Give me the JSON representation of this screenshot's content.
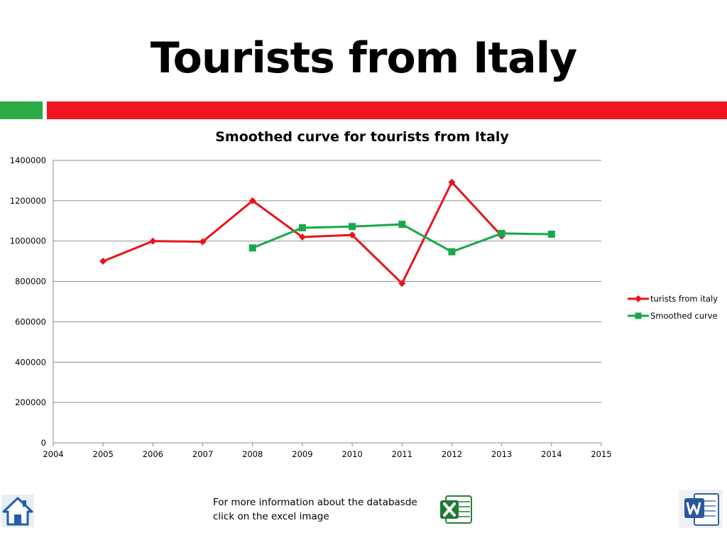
{
  "slide": {
    "title": "Tourists from Italy",
    "accent_green": "#2bab46",
    "accent_red": "#f0141e"
  },
  "chart_data": {
    "type": "line",
    "title": "Smoothed curve for tourists from Italy",
    "xlabel": "",
    "ylabel": "",
    "xlim": [
      2004,
      2015
    ],
    "ylim": [
      0,
      1400000
    ],
    "x_ticks": [
      "2004",
      "2005",
      "2006",
      "2007",
      "2008",
      "2009",
      "2010",
      "2011",
      "2012",
      "2013",
      "2014",
      "2015"
    ],
    "y_ticks": [
      "0",
      "200000",
      "400000",
      "600000",
      "800000",
      "1000000",
      "1200000",
      "1400000"
    ],
    "grid": "horizontal",
    "legend_position": "right",
    "series": [
      {
        "name": "turists from italy",
        "color": "#e8141c",
        "marker": "diamond",
        "x": [
          2005,
          2006,
          2007,
          2008,
          2009,
          2010,
          2011,
          2012,
          2013
        ],
        "values": [
          900000,
          1000000,
          997000,
          1200000,
          1020000,
          1030000,
          790000,
          1292000,
          1025000
        ]
      },
      {
        "name": "Smoothed curve",
        "color": "#17a84a",
        "marker": "square",
        "x": [
          2008,
          2009,
          2010,
          2011,
          2012,
          2013,
          2014
        ],
        "values": [
          966000,
          1066000,
          1072000,
          1083000,
          947000,
          1038000,
          1034000
        ]
      }
    ]
  },
  "footer": {
    "line1": "For more information about the databasde",
    "line2": "click on the excel image",
    "home_icon": "home-icon",
    "excel_icon": "excel-icon",
    "word_icon": "word-icon"
  }
}
